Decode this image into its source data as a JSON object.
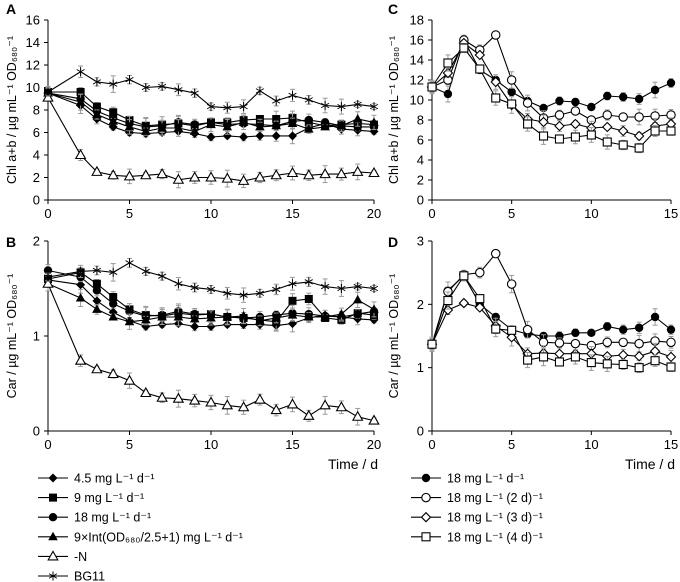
{
  "chart_data": [
    {
      "id": "A",
      "type": "line",
      "panel_label": "A",
      "ylabel": "Chl a+b / µg mL⁻¹ OD₆₈₀⁻¹",
      "ylim": [
        0,
        16
      ],
      "yticks": [
        0,
        2,
        4,
        6,
        8,
        10,
        12,
        14,
        16
      ],
      "xlim": [
        0,
        20
      ],
      "xticks": [
        0,
        5,
        10,
        15,
        20
      ],
      "xlabel": "",
      "x": [
        0,
        2,
        3,
        4,
        5,
        6,
        7,
        8,
        9,
        10,
        11,
        12,
        13,
        14,
        15,
        16,
        17,
        18,
        19,
        20
      ],
      "series": [
        {
          "name": "4.5 mg L⁻¹ d⁻¹",
          "marker": "diamond",
          "values": [
            9.5,
            8.4,
            7.2,
            6.5,
            6.0,
            5.9,
            6.0,
            6.1,
            5.9,
            5.6,
            5.7,
            5.6,
            5.7,
            5.7,
            5.7,
            6.4,
            6.8,
            6.3,
            6.2,
            6.1
          ]
        },
        {
          "name": "9 mg L⁻¹ d⁻¹",
          "marker": "square",
          "values": [
            9.6,
            9.6,
            8.3,
            7.8,
            7.1,
            6.6,
            6.7,
            6.8,
            6.6,
            6.9,
            6.9,
            7.1,
            7.2,
            7.2,
            7.3,
            6.9,
            6.6,
            6.7,
            6.8,
            6.7
          ]
        },
        {
          "name": "18 mg L⁻¹ d⁻¹",
          "marker": "circle",
          "values": [
            9.5,
            9.0,
            7.9,
            7.3,
            6.8,
            6.5,
            6.6,
            6.9,
            6.7,
            6.9,
            6.7,
            6.8,
            6.7,
            6.6,
            7.0,
            7.1,
            6.9,
            6.6,
            6.5,
            6.5
          ]
        },
        {
          "name": "9×Int(OD₆₈₀/2.5+1) mg L⁻¹ d⁻¹",
          "marker": "triangle",
          "values": [
            9.5,
            8.7,
            7.6,
            7.0,
            6.5,
            6.1,
            6.4,
            6.4,
            6.1,
            6.7,
            6.5,
            6.9,
            6.5,
            6.6,
            6.8,
            6.3,
            6.5,
            6.6,
            7.2,
            6.9
          ]
        },
        {
          "name": "-N",
          "marker": "triangle-open",
          "values": [
            9.1,
            4.0,
            2.5,
            2.2,
            2.1,
            2.2,
            2.3,
            1.8,
            2.0,
            2.0,
            1.9,
            1.7,
            2.0,
            2.2,
            2.4,
            2.2,
            2.3,
            2.3,
            2.5,
            2.4
          ]
        },
        {
          "name": "BG11",
          "marker": "asterisk",
          "values": [
            9.6,
            11.4,
            10.5,
            10.3,
            10.7,
            10.0,
            10.1,
            9.8,
            9.5,
            8.3,
            8.2,
            8.3,
            9.7,
            8.8,
            9.3,
            8.9,
            8.4,
            8.3,
            8.5,
            8.3
          ]
        }
      ]
    },
    {
      "id": "B",
      "type": "line",
      "panel_label": "B",
      "ylabel": "Car / µg mL⁻¹ OD₆₈₀⁻¹",
      "ylim": [
        0,
        2
      ],
      "yticks": [
        0,
        1,
        2
      ],
      "xlim": [
        0,
        20
      ],
      "xticks": [
        0,
        5,
        10,
        15,
        20
      ],
      "xlabel": "Time / d",
      "x": [
        0,
        2,
        3,
        4,
        5,
        6,
        7,
        8,
        9,
        10,
        11,
        12,
        13,
        14,
        15,
        16,
        17,
        18,
        19,
        20
      ],
      "series": [
        {
          "name": "4.5 mg L⁻¹ d⁻¹",
          "marker": "diamond",
          "values": [
            1.59,
            1.54,
            1.37,
            1.25,
            1.16,
            1.1,
            1.12,
            1.13,
            1.1,
            1.1,
            1.12,
            1.12,
            1.12,
            1.11,
            1.13,
            1.19,
            1.22,
            1.2,
            1.18,
            1.17
          ]
        },
        {
          "name": "9 mg L⁻¹ d⁻¹",
          "marker": "square",
          "values": [
            1.6,
            1.67,
            1.55,
            1.41,
            1.28,
            1.22,
            1.21,
            1.24,
            1.22,
            1.23,
            1.2,
            1.19,
            1.17,
            1.15,
            1.37,
            1.39,
            1.19,
            1.17,
            1.24,
            1.22
          ]
        },
        {
          "name": "18 mg L⁻¹ d⁻¹",
          "marker": "circle",
          "values": [
            1.69,
            1.62,
            1.48,
            1.34,
            1.26,
            1.21,
            1.22,
            1.26,
            1.23,
            1.23,
            1.2,
            1.19,
            1.2,
            1.22,
            1.24,
            1.23,
            1.21,
            1.2,
            1.23,
            1.26
          ]
        },
        {
          "name": "9×Int(OD₆₈₀/2.5+1) mg L⁻¹ d⁻¹",
          "marker": "triangle",
          "values": [
            1.55,
            1.4,
            1.28,
            1.2,
            1.15,
            1.17,
            1.2,
            1.2,
            1.18,
            1.19,
            1.2,
            1.21,
            1.16,
            1.19,
            1.22,
            1.2,
            1.2,
            1.23,
            1.38,
            1.28
          ]
        },
        {
          "name": "-N",
          "marker": "triangle-open",
          "values": [
            1.55,
            0.74,
            0.65,
            0.6,
            0.53,
            0.4,
            0.35,
            0.34,
            0.32,
            0.3,
            0.27,
            0.25,
            0.33,
            0.22,
            0.28,
            0.16,
            0.27,
            0.25,
            0.15,
            0.11
          ]
        },
        {
          "name": "BG11",
          "marker": "asterisk",
          "values": [
            1.62,
            1.68,
            1.69,
            1.67,
            1.77,
            1.68,
            1.63,
            1.55,
            1.51,
            1.49,
            1.45,
            1.43,
            1.45,
            1.49,
            1.55,
            1.57,
            1.52,
            1.5,
            1.52,
            1.5
          ]
        }
      ]
    },
    {
      "id": "C",
      "type": "line",
      "panel_label": "C",
      "ylabel": "Chl a+b / µg mL⁻¹ OD₆₈₀⁻¹",
      "ylim": [
        0,
        18
      ],
      "yticks": [
        0,
        2,
        4,
        6,
        8,
        10,
        12,
        14,
        16,
        18
      ],
      "xlim": [
        0,
        15
      ],
      "xticks": [
        0,
        5,
        10,
        15
      ],
      "xlabel": "",
      "x": [
        0,
        1,
        2,
        3,
        4,
        5,
        6,
        7,
        8,
        9,
        10,
        11,
        12,
        13,
        14,
        15
      ],
      "series": [
        {
          "name": "18 mg L⁻¹ d⁻¹",
          "marker": "circle",
          "values": [
            11.3,
            10.6,
            16.0,
            13.0,
            12.0,
            10.8,
            9.9,
            9.2,
            9.9,
            9.8,
            9.3,
            10.4,
            10.3,
            10.1,
            11.0,
            11.7
          ]
        },
        {
          "name": "18 mg L⁻¹ (2 d)⁻¹",
          "marker": "circle-open",
          "values": [
            11.3,
            12.0,
            16.0,
            15.0,
            16.5,
            12.0,
            9.7,
            8.2,
            8.5,
            8.9,
            8.0,
            8.5,
            8.3,
            8.3,
            8.4,
            8.5
          ]
        },
        {
          "name": "18 mg L⁻¹ (3 d)⁻¹",
          "marker": "diamond-open",
          "values": [
            11.3,
            12.7,
            15.7,
            14.5,
            11.8,
            9.5,
            8.1,
            7.8,
            7.4,
            7.6,
            7.2,
            7.3,
            6.9,
            6.4,
            7.4,
            7.6
          ]
        },
        {
          "name": "18 mg L⁻¹ (4 d)⁻¹",
          "marker": "square-open",
          "values": [
            11.3,
            13.7,
            15.2,
            13.1,
            10.2,
            9.6,
            7.6,
            6.4,
            6.1,
            6.3,
            6.5,
            5.8,
            5.5,
            5.2,
            6.9,
            6.9
          ]
        }
      ]
    },
    {
      "id": "D",
      "type": "line",
      "panel_label": "D",
      "ylabel": "Car / µg mL⁻¹ OD₆₈₀⁻¹",
      "ylim": [
        0,
        3
      ],
      "yticks": [
        0,
        1,
        2,
        3
      ],
      "xlim": [
        0,
        15
      ],
      "xticks": [
        0,
        5,
        10,
        15
      ],
      "xlabel": "Time / d",
      "x": [
        0,
        1,
        2,
        3,
        4,
        5,
        6,
        7,
        8,
        9,
        10,
        11,
        12,
        13,
        14,
        15
      ],
      "series": [
        {
          "name": "18 mg L⁻¹ d⁻¹",
          "marker": "circle",
          "values": [
            1.37,
            2.22,
            2.45,
            2.0,
            1.8,
            1.6,
            1.53,
            1.5,
            1.5,
            1.55,
            1.55,
            1.65,
            1.6,
            1.63,
            1.8,
            1.6
          ]
        },
        {
          "name": "18 mg L⁻¹ (2 d)⁻¹",
          "marker": "circle-open",
          "values": [
            1.37,
            2.2,
            2.47,
            2.5,
            2.8,
            2.32,
            1.6,
            1.4,
            1.39,
            1.38,
            1.35,
            1.4,
            1.4,
            1.38,
            1.42,
            1.4
          ]
        },
        {
          "name": "18 mg L⁻¹ (3 d)⁻¹",
          "marker": "diamond-open",
          "values": [
            1.37,
            1.91,
            2.02,
            1.95,
            1.66,
            1.48,
            1.22,
            1.23,
            1.22,
            1.22,
            1.22,
            1.18,
            1.2,
            1.18,
            1.26,
            1.17
          ]
        },
        {
          "name": "18 mg L⁻¹ (4 d)⁻¹",
          "marker": "square-open",
          "values": [
            1.37,
            2.06,
            2.45,
            2.09,
            1.61,
            1.59,
            1.12,
            1.17,
            1.09,
            1.17,
            1.08,
            1.06,
            1.05,
            1.0,
            1.11,
            1.01
          ]
        }
      ]
    }
  ],
  "legend_left": [
    {
      "label": "4.5 mg L⁻¹ d⁻¹",
      "marker": "diamond"
    },
    {
      "label": "9 mg L⁻¹ d⁻¹",
      "marker": "square"
    },
    {
      "label": "18 mg L⁻¹ d⁻¹",
      "marker": "circle"
    },
    {
      "label": "9×Int(OD₆₈₀/2.5+1) mg L⁻¹ d⁻¹",
      "marker": "triangle"
    },
    {
      "label": "-N",
      "marker": "triangle-open"
    },
    {
      "label": "BG11",
      "marker": "asterisk"
    }
  ],
  "legend_right": [
    {
      "label": "18 mg L⁻¹ d⁻¹",
      "marker": "circle"
    },
    {
      "label": "18 mg L⁻¹ (2 d)⁻¹",
      "marker": "circle-open"
    },
    {
      "label": "18 mg L⁻¹ (3 d)⁻¹",
      "marker": "diamond-open"
    },
    {
      "label": "18 mg L⁻¹ (4 d)⁻¹",
      "marker": "square-open"
    }
  ],
  "colors": {
    "line": "#000000",
    "axis": "#000000",
    "errorbar": "#9a9a9a",
    "open_fill": "#ffffff"
  }
}
